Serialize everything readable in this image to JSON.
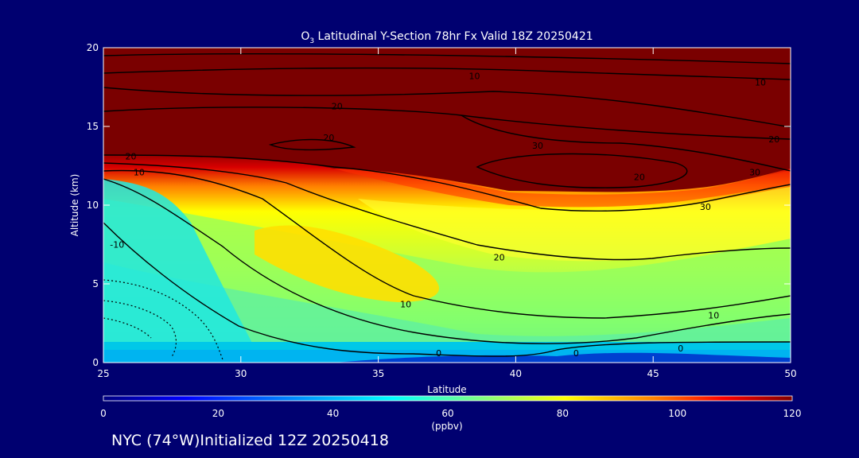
{
  "chart_data": {
    "type": "heatmap",
    "title_main": "O",
    "title_sub": "3",
    "title_rest": " Latitudinal Y-Section 78hr  Fx Valid 18Z 20250421",
    "xlabel": "Latitude",
    "ylabel": "Altitude (km)",
    "xlim": [
      25,
      50
    ],
    "ylim": [
      0,
      20
    ],
    "xticks": [
      "25",
      "30",
      "35",
      "40",
      "45",
      "50"
    ],
    "yticks": [
      "0",
      "5",
      "10",
      "15",
      "20"
    ],
    "colorbar": {
      "ticks": [
        "0",
        "20",
        "40",
        "60",
        "80",
        "100",
        "120"
      ],
      "range": [
        0,
        120
      ],
      "label": "(ppbv)"
    },
    "contour_labels": [
      "10",
      "10",
      "20",
      "20",
      "20",
      "20",
      "30",
      "30",
      "30",
      "20",
      "10",
      "10",
      "0",
      "-10",
      "20",
      "10",
      "0",
      "0"
    ],
    "footer": "NYC (74°W)Initialized 12Z 20250418",
    "colors": {
      "background": "#000070",
      "stratosphere": "#7a0000",
      "surface_layer": "#00c8e8"
    }
  }
}
